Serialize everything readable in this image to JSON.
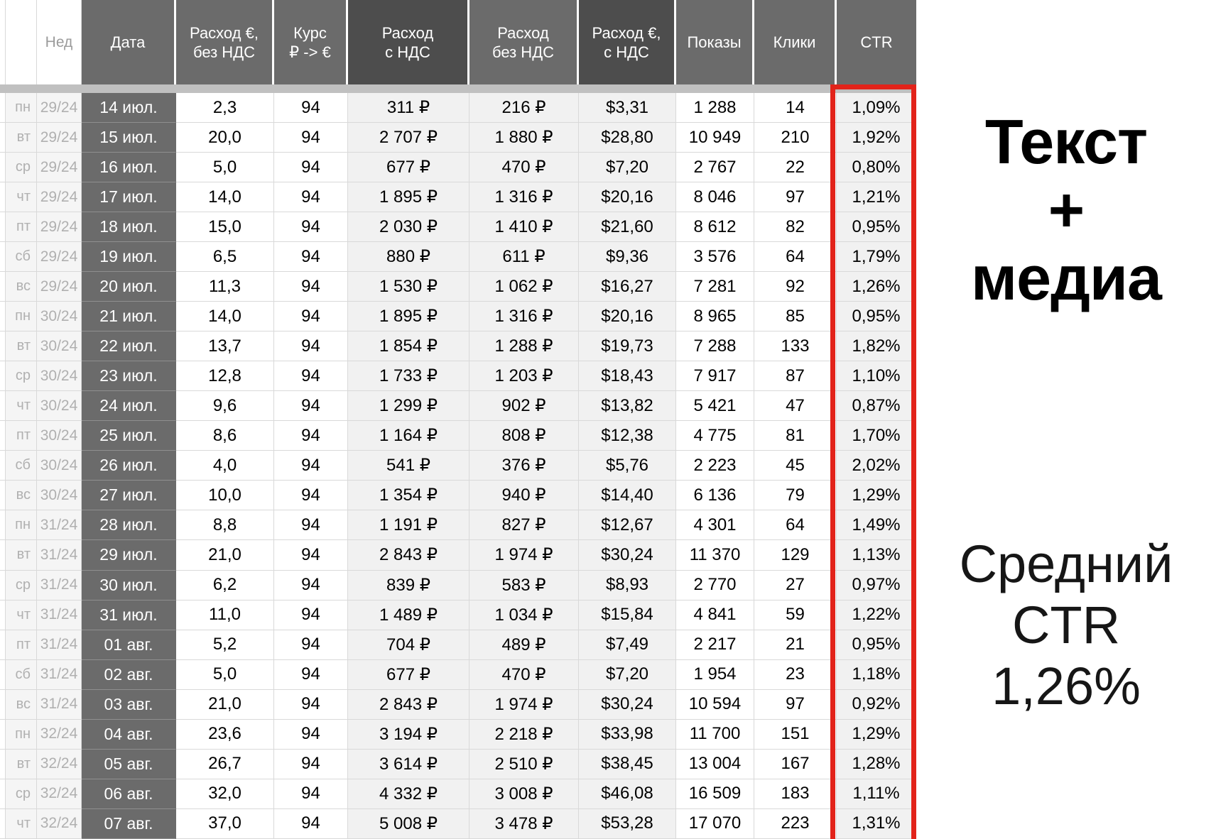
{
  "table": {
    "headers": {
      "week": "Нед",
      "date": "Дата",
      "spend_eur_no_vat": "Расход €,\nбез НДС",
      "rate": "Курс\n₽ -> €",
      "spend_rub_vat": "Расход\nс НДС",
      "spend_rub_no_vat": "Расход\nбез НДС",
      "spend_usd_vat": "Расход €,\nс НДС",
      "impressions": "Показы",
      "clicks": "Клики",
      "ctr": "CTR"
    },
    "rows": [
      {
        "dow": "пн",
        "week": "29/24",
        "date": "14 июл.",
        "eur": "2,3",
        "rate": "94",
        "rub_vat": "311 ₽",
        "rub_no_vat": "216 ₽",
        "usd": "$3,31",
        "impressions": "1 288",
        "clicks": "14",
        "ctr": "1,09%"
      },
      {
        "dow": "вт",
        "week": "29/24",
        "date": "15 июл.",
        "eur": "20,0",
        "rate": "94",
        "rub_vat": "2 707 ₽",
        "rub_no_vat": "1 880 ₽",
        "usd": "$28,80",
        "impressions": "10 949",
        "clicks": "210",
        "ctr": "1,92%"
      },
      {
        "dow": "ср",
        "week": "29/24",
        "date": "16 июл.",
        "eur": "5,0",
        "rate": "94",
        "rub_vat": "677 ₽",
        "rub_no_vat": "470 ₽",
        "usd": "$7,20",
        "impressions": "2 767",
        "clicks": "22",
        "ctr": "0,80%"
      },
      {
        "dow": "чт",
        "week": "29/24",
        "date": "17 июл.",
        "eur": "14,0",
        "rate": "94",
        "rub_vat": "1 895 ₽",
        "rub_no_vat": "1 316 ₽",
        "usd": "$20,16",
        "impressions": "8 046",
        "clicks": "97",
        "ctr": "1,21%"
      },
      {
        "dow": "пт",
        "week": "29/24",
        "date": "18 июл.",
        "eur": "15,0",
        "rate": "94",
        "rub_vat": "2 030 ₽",
        "rub_no_vat": "1 410 ₽",
        "usd": "$21,60",
        "impressions": "8 612",
        "clicks": "82",
        "ctr": "0,95%"
      },
      {
        "dow": "сб",
        "week": "29/24",
        "date": "19 июл.",
        "eur": "6,5",
        "rate": "94",
        "rub_vat": "880 ₽",
        "rub_no_vat": "611 ₽",
        "usd": "$9,36",
        "impressions": "3 576",
        "clicks": "64",
        "ctr": "1,79%"
      },
      {
        "dow": "вс",
        "week": "29/24",
        "date": "20 июл.",
        "eur": "11,3",
        "rate": "94",
        "rub_vat": "1 530 ₽",
        "rub_no_vat": "1 062 ₽",
        "usd": "$16,27",
        "impressions": "7 281",
        "clicks": "92",
        "ctr": "1,26%"
      },
      {
        "dow": "пн",
        "week": "30/24",
        "date": "21 июл.",
        "eur": "14,0",
        "rate": "94",
        "rub_vat": "1 895 ₽",
        "rub_no_vat": "1 316 ₽",
        "usd": "$20,16",
        "impressions": "8 965",
        "clicks": "85",
        "ctr": "0,95%"
      },
      {
        "dow": "вт",
        "week": "30/24",
        "date": "22 июл.",
        "eur": "13,7",
        "rate": "94",
        "rub_vat": "1 854 ₽",
        "rub_no_vat": "1 288 ₽",
        "usd": "$19,73",
        "impressions": "7 288",
        "clicks": "133",
        "ctr": "1,82%"
      },
      {
        "dow": "ср",
        "week": "30/24",
        "date": "23 июл.",
        "eur": "12,8",
        "rate": "94",
        "rub_vat": "1 733 ₽",
        "rub_no_vat": "1 203 ₽",
        "usd": "$18,43",
        "impressions": "7 917",
        "clicks": "87",
        "ctr": "1,10%"
      },
      {
        "dow": "чт",
        "week": "30/24",
        "date": "24 июл.",
        "eur": "9,6",
        "rate": "94",
        "rub_vat": "1 299 ₽",
        "rub_no_vat": "902 ₽",
        "usd": "$13,82",
        "impressions": "5 421",
        "clicks": "47",
        "ctr": "0,87%"
      },
      {
        "dow": "пт",
        "week": "30/24",
        "date": "25 июл.",
        "eur": "8,6",
        "rate": "94",
        "rub_vat": "1 164 ₽",
        "rub_no_vat": "808 ₽",
        "usd": "$12,38",
        "impressions": "4 775",
        "clicks": "81",
        "ctr": "1,70%"
      },
      {
        "dow": "сб",
        "week": "30/24",
        "date": "26 июл.",
        "eur": "4,0",
        "rate": "94",
        "rub_vat": "541 ₽",
        "rub_no_vat": "376 ₽",
        "usd": "$5,76",
        "impressions": "2 223",
        "clicks": "45",
        "ctr": "2,02%"
      },
      {
        "dow": "вс",
        "week": "30/24",
        "date": "27 июл.",
        "eur": "10,0",
        "rate": "94",
        "rub_vat": "1 354 ₽",
        "rub_no_vat": "940 ₽",
        "usd": "$14,40",
        "impressions": "6 136",
        "clicks": "79",
        "ctr": "1,29%"
      },
      {
        "dow": "пн",
        "week": "31/24",
        "date": "28 июл.",
        "eur": "8,8",
        "rate": "94",
        "rub_vat": "1 191 ₽",
        "rub_no_vat": "827 ₽",
        "usd": "$12,67",
        "impressions": "4 301",
        "clicks": "64",
        "ctr": "1,49%"
      },
      {
        "dow": "вт",
        "week": "31/24",
        "date": "29 июл.",
        "eur": "21,0",
        "rate": "94",
        "rub_vat": "2 843 ₽",
        "rub_no_vat": "1 974 ₽",
        "usd": "$30,24",
        "impressions": "11 370",
        "clicks": "129",
        "ctr": "1,13%"
      },
      {
        "dow": "ср",
        "week": "31/24",
        "date": "30 июл.",
        "eur": "6,2",
        "rate": "94",
        "rub_vat": "839 ₽",
        "rub_no_vat": "583 ₽",
        "usd": "$8,93",
        "impressions": "2 770",
        "clicks": "27",
        "ctr": "0,97%"
      },
      {
        "dow": "чт",
        "week": "31/24",
        "date": "31 июл.",
        "eur": "11,0",
        "rate": "94",
        "rub_vat": "1 489 ₽",
        "rub_no_vat": "1 034 ₽",
        "usd": "$15,84",
        "impressions": "4 841",
        "clicks": "59",
        "ctr": "1,22%"
      },
      {
        "dow": "пт",
        "week": "31/24",
        "date": "01 авг.",
        "eur": "5,2",
        "rate": "94",
        "rub_vat": "704 ₽",
        "rub_no_vat": "489 ₽",
        "usd": "$7,49",
        "impressions": "2 217",
        "clicks": "21",
        "ctr": "0,95%"
      },
      {
        "dow": "сб",
        "week": "31/24",
        "date": "02 авг.",
        "eur": "5,0",
        "rate": "94",
        "rub_vat": "677 ₽",
        "rub_no_vat": "470 ₽",
        "usd": "$7,20",
        "impressions": "1 954",
        "clicks": "23",
        "ctr": "1,18%"
      },
      {
        "dow": "вс",
        "week": "31/24",
        "date": "03 авг.",
        "eur": "21,0",
        "rate": "94",
        "rub_vat": "2 843 ₽",
        "rub_no_vat": "1 974 ₽",
        "usd": "$30,24",
        "impressions": "10 594",
        "clicks": "97",
        "ctr": "0,92%"
      },
      {
        "dow": "пн",
        "week": "32/24",
        "date": "04 авг.",
        "eur": "23,6",
        "rate": "94",
        "rub_vat": "3 194 ₽",
        "rub_no_vat": "2 218 ₽",
        "usd": "$33,98",
        "impressions": "11 700",
        "clicks": "151",
        "ctr": "1,29%"
      },
      {
        "dow": "вт",
        "week": "32/24",
        "date": "05 авг.",
        "eur": "26,7",
        "rate": "94",
        "rub_vat": "3 614 ₽",
        "rub_no_vat": "2 510 ₽",
        "usd": "$38,45",
        "impressions": "13 004",
        "clicks": "167",
        "ctr": "1,28%"
      },
      {
        "dow": "ср",
        "week": "32/24",
        "date": "06 авг.",
        "eur": "32,0",
        "rate": "94",
        "rub_vat": "4 332 ₽",
        "rub_no_vat": "3 008 ₽",
        "usd": "$46,08",
        "impressions": "16 509",
        "clicks": "183",
        "ctr": "1,11%"
      },
      {
        "dow": "чт",
        "week": "32/24",
        "date": "07 авг.",
        "eur": "37,0",
        "rate": "94",
        "rub_vat": "5 008 ₽",
        "rub_no_vat": "3 478 ₽",
        "usd": "$53,28",
        "impressions": "17 070",
        "clicks": "223",
        "ctr": "1,31%"
      }
    ]
  },
  "right_panel": {
    "title_lines": [
      "Текст",
      "+",
      "медиа"
    ],
    "subtitle_lines": [
      "Средний",
      "CTR",
      "1,26%"
    ]
  },
  "colors": {
    "header_gray": "#6b6b6b",
    "header_dark": "#4d4d4d",
    "date_cell_gray": "#6b6b6b",
    "alt_cell_gray": "#f1f1f1",
    "muted_text_gray": "#b0b0b0",
    "divider_gray": "#c0c0c0",
    "highlight_red": "#e2231a"
  }
}
